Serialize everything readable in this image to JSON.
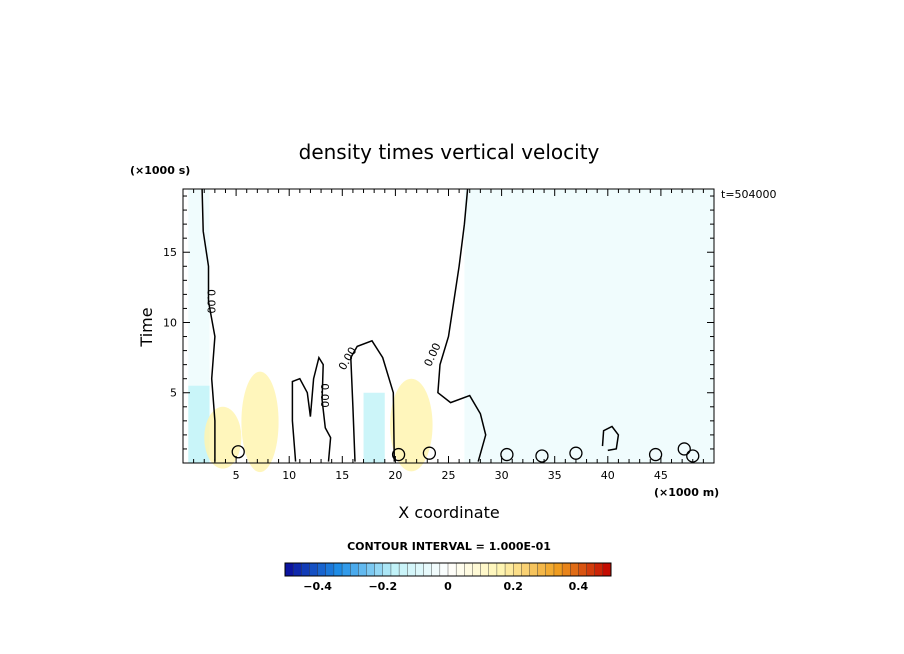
{
  "chart_data": {
    "type": "contour",
    "title": "density times vertical velocity",
    "xlabel": "X coordinate",
    "ylabel": "Time",
    "x_unit": "(×1000 m)",
    "y_unit": "(×1000 s)",
    "time_stamp": "t=504000",
    "xlim": [
      0,
      50
    ],
    "ylim": [
      0,
      19.5
    ],
    "x_ticks": [
      5,
      10,
      15,
      20,
      25,
      30,
      35,
      40,
      45
    ],
    "x_tick_labels": [
      "5",
      "10",
      "15",
      "20",
      "25",
      "30",
      "35",
      "40",
      "45"
    ],
    "y_ticks": [
      5,
      10,
      15
    ],
    "y_tick_labels": [
      "5",
      "10",
      "15"
    ],
    "contour_labels": [
      "0.00",
      "0.00",
      "0.00",
      "0.00"
    ],
    "contour_interval_text": "CONTOUR INTERVAL = 1.000E-01",
    "colorbar": {
      "range": [
        -0.5,
        0.5
      ],
      "tick_values": [
        -0.4,
        -0.2,
        0,
        0.2,
        0.4
      ],
      "tick_labels": [
        "−0.4",
        "−0.2",
        "0",
        "0.2",
        "0.4"
      ]
    },
    "zero_contours": [
      [
        [
          1.8,
          19.5
        ],
        [
          1.9,
          16.5
        ],
        [
          2.4,
          14.0
        ],
        [
          2.4,
          11.5
        ],
        [
          3.0,
          9.0
        ],
        [
          2.7,
          6.0
        ],
        [
          3.0,
          3.0
        ],
        [
          3.0,
          0.1
        ]
      ],
      [
        [
          26.8,
          19.5
        ],
        [
          26.5,
          17.0
        ],
        [
          26.0,
          14.0
        ],
        [
          25.5,
          11.5
        ],
        [
          25.0,
          9.0
        ],
        [
          24.2,
          7.0
        ],
        [
          24.0,
          5.0
        ],
        [
          25.2,
          4.3
        ],
        [
          27.0,
          4.8
        ],
        [
          28.0,
          3.5
        ],
        [
          28.5,
          2.0
        ],
        [
          27.8,
          0.1
        ]
      ],
      [
        [
          16.2,
          0.1
        ],
        [
          16.0,
          4.0
        ],
        [
          15.8,
          7.5
        ],
        [
          16.4,
          8.3
        ],
        [
          17.8,
          8.7
        ],
        [
          18.8,
          7.5
        ],
        [
          19.8,
          5.0
        ],
        [
          19.9,
          0.1
        ]
      ],
      [
        [
          10.6,
          0.1
        ],
        [
          10.3,
          3.0
        ],
        [
          10.3,
          5.8
        ],
        [
          11.0,
          6.0
        ],
        [
          11.7,
          5.0
        ],
        [
          12.0,
          3.3
        ],
        [
          12.3,
          6.0
        ],
        [
          12.8,
          7.5
        ],
        [
          13.2,
          7.0
        ],
        [
          13.1,
          4.5
        ],
        [
          13.4,
          2.5
        ],
        [
          13.9,
          1.8
        ],
        [
          13.7,
          0.1
        ]
      ],
      [
        [
          39.5,
          1.2
        ],
        [
          39.6,
          2.3
        ],
        [
          40.4,
          2.6
        ],
        [
          41.0,
          2.0
        ],
        [
          40.8,
          1.0
        ],
        [
          40.0,
          0.9
        ]
      ]
    ],
    "positive_regions": [
      {
        "x": [
          2.0,
          5.5
        ],
        "y": [
          0,
          4.0
        ],
        "value": 0.05
      },
      {
        "x": [
          5.5,
          9.0
        ],
        "y": [
          0,
          6.5
        ],
        "value": 0.05
      },
      {
        "x": [
          19.5,
          23.5
        ],
        "y": [
          0,
          6.0
        ],
        "value": 0.05
      }
    ],
    "negative_regions": [
      {
        "x": [
          26.5,
          50.0
        ],
        "y": [
          0,
          19.5
        ],
        "value": -0.02
      },
      {
        "x": [
          0.5,
          2.5
        ],
        "y": [
          0,
          19.5
        ],
        "value": -0.02
      },
      {
        "x": [
          0.5,
          2.5
        ],
        "y": [
          0,
          5.5
        ],
        "value": -0.05
      },
      {
        "x": [
          17.0,
          19.0
        ],
        "y": [
          0,
          5.0
        ],
        "value": -0.05
      }
    ],
    "colors": {
      "negative_strong": "#0a0a9a",
      "negative_mid": "#1e8fe8",
      "negative_light": "#bff2f8",
      "zero": "#ffffff",
      "positive_light": "#fff5b0",
      "positive_mid": "#f0a020",
      "positive_strong": "#c00000",
      "contour": "#000000"
    }
  }
}
